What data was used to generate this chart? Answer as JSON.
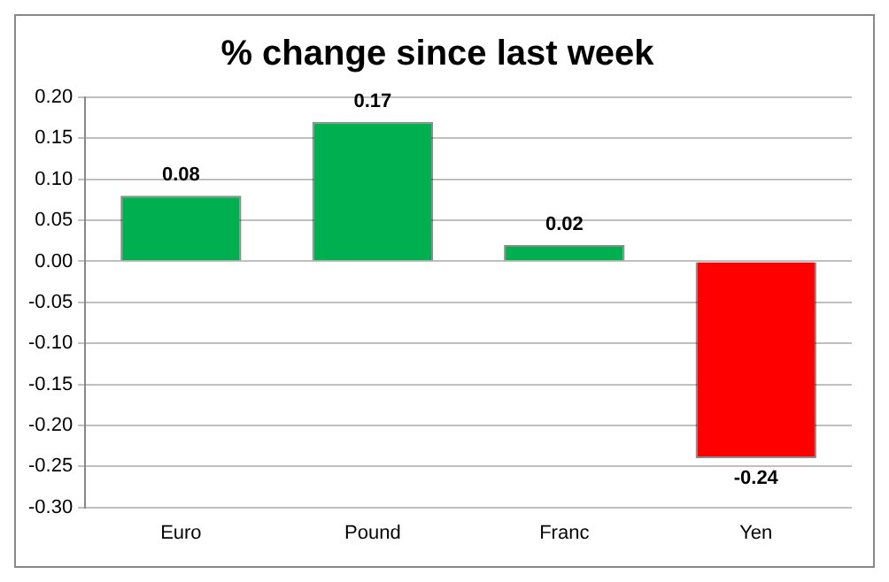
{
  "chart_data": {
    "type": "bar",
    "title": "% change since last week",
    "categories": [
      "Euro",
      "Pound",
      "Franc",
      "Yen"
    ],
    "values": [
      0.08,
      0.17,
      0.02,
      -0.24
    ],
    "colors": [
      "#00b050",
      "#00b050",
      "#00b050",
      "#ff0000"
    ],
    "ylim": [
      -0.3,
      0.2
    ],
    "yticks": [
      {
        "value": -0.3,
        "label": "-0.30"
      },
      {
        "value": -0.25,
        "label": "-0.25"
      },
      {
        "value": -0.2,
        "label": "-0.20"
      },
      {
        "value": -0.15,
        "label": "-0.15"
      },
      {
        "value": -0.1,
        "label": "-0.10"
      },
      {
        "value": -0.05,
        "label": "-0.05"
      },
      {
        "value": 0,
        "label": "0.00"
      },
      {
        "value": 0.05,
        "label": "0.05"
      },
      {
        "value": 0.1,
        "label": "0.10"
      },
      {
        "value": 0.15,
        "label": "0.15"
      },
      {
        "value": 0.2,
        "label": "0.20"
      }
    ],
    "grid": "y",
    "data_labels": true,
    "legend": false
  }
}
